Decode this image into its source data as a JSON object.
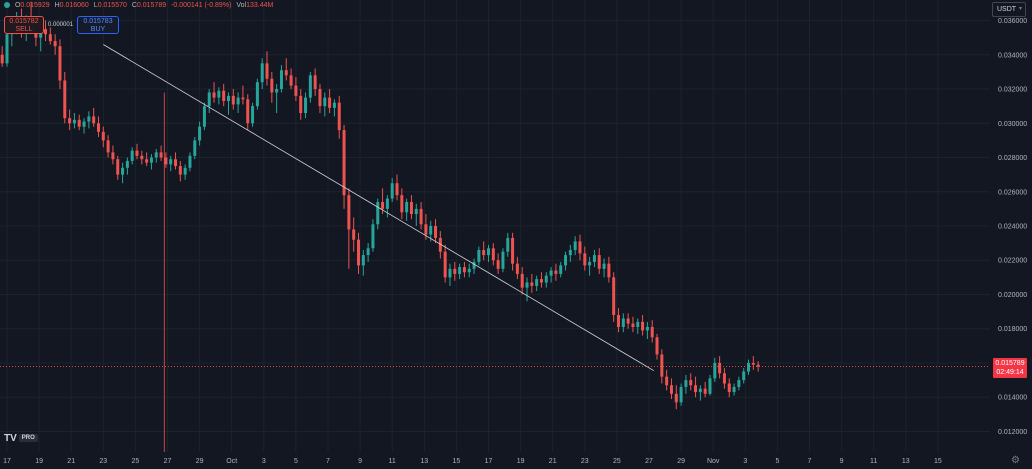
{
  "ohlc": {
    "open_label": "O",
    "open": "0.015929",
    "high_label": "H",
    "high": "0.016060",
    "low_label": "L",
    "low": "0.015570",
    "close_label": "C",
    "close": "0.015789",
    "change": "-0.000141 (-0.89%)",
    "volume_label": "Vol",
    "volume": "133.44M"
  },
  "trade": {
    "sell_price": "0.015782",
    "sell_label": "SELL",
    "spread": "0.000001",
    "buy_price": "0.015783",
    "buy_label": "BUY"
  },
  "currency_selector": {
    "value": "USDT"
  },
  "current_price": {
    "value": "0.015789",
    "countdown": "02:49:14"
  },
  "logo": {
    "text": "TV",
    "badge": "PRO"
  },
  "icons": {
    "settings": "gear-icon",
    "symbol_dot": "circle-icon"
  },
  "colors": {
    "background": "#131722",
    "up": "#26a69a",
    "down": "#ef5350",
    "grid": "#1e222d",
    "text": "#b2b5be"
  },
  "chart_data": {
    "type": "candlestick",
    "y_axis": {
      "ticks": [
        "0.036000",
        "0.034000",
        "0.032000",
        "0.030000",
        "0.028000",
        "0.026000",
        "0.024000",
        "0.022000",
        "0.020000",
        "0.018000",
        "0.016000",
        "0.014000",
        "0.012000"
      ],
      "range": [
        0.0108,
        0.0372
      ]
    },
    "x_axis": {
      "ticks": [
        "17",
        "19",
        "21",
        "23",
        "25",
        "27",
        "29",
        "Oct",
        "3",
        "5",
        "7",
        "9",
        "11",
        "13",
        "15",
        "17",
        "19",
        "21",
        "23",
        "25",
        "27",
        "29",
        "Nov",
        "3",
        "5",
        "7",
        "9",
        "11",
        "13",
        "15"
      ]
    },
    "trendline": {
      "from": {
        "day": 6,
        "price": 0.0346
      },
      "to": {
        "day": 40.3,
        "price": 0.01555
      }
    },
    "current_price_line": 0.015789,
    "crosshair_day": 9.8,
    "ohlc_days": [
      [
        -0.9,
        0.0335,
        0.0338,
        0.0331,
        0.0334
      ],
      [
        -0.6,
        0.0334,
        0.0342,
        0.0332,
        0.034
      ],
      [
        -0.3,
        0.034,
        0.0345,
        0.0333,
        0.0335
      ],
      [
        0.0,
        0.0335,
        0.0353,
        0.0333,
        0.0352
      ],
      [
        0.3,
        0.0352,
        0.036,
        0.0345,
        0.0358
      ],
      [
        0.6,
        0.0358,
        0.0365,
        0.0352,
        0.036
      ],
      [
        0.9,
        0.036,
        0.0367,
        0.035,
        0.0355
      ],
      [
        1.2,
        0.0355,
        0.0363,
        0.0348,
        0.0362
      ],
      [
        1.5,
        0.0362,
        0.0371,
        0.0355,
        0.0358
      ],
      [
        1.8,
        0.0358,
        0.0362,
        0.0345,
        0.035
      ],
      [
        2.1,
        0.035,
        0.0358,
        0.0342,
        0.0355
      ],
      [
        2.4,
        0.0355,
        0.036,
        0.0348,
        0.0352
      ],
      [
        2.7,
        0.0352,
        0.0356,
        0.0346,
        0.0348
      ],
      [
        3.0,
        0.0348,
        0.0352,
        0.034,
        0.0345
      ],
      [
        3.3,
        0.0345,
        0.0349,
        0.032,
        0.0325
      ],
      [
        3.6,
        0.0325,
        0.033,
        0.03,
        0.0303
      ],
      [
        3.9,
        0.0303,
        0.0308,
        0.0296,
        0.03
      ],
      [
        4.2,
        0.03,
        0.0306,
        0.0297,
        0.0302
      ],
      [
        4.5,
        0.0302,
        0.0305,
        0.0296,
        0.0298
      ],
      [
        4.8,
        0.0298,
        0.0303,
        0.0294,
        0.0301
      ],
      [
        5.1,
        0.0301,
        0.0307,
        0.0297,
        0.0304
      ],
      [
        5.4,
        0.0304,
        0.0309,
        0.0298,
        0.03
      ],
      [
        5.7,
        0.03,
        0.0304,
        0.0292,
        0.0295
      ],
      [
        6.0,
        0.0295,
        0.0298,
        0.0286,
        0.029
      ],
      [
        6.3,
        0.029,
        0.0293,
        0.028,
        0.0283
      ],
      [
        6.6,
        0.0283,
        0.0287,
        0.0276,
        0.0279
      ],
      [
        6.9,
        0.0279,
        0.0281,
        0.0267,
        0.027
      ],
      [
        7.2,
        0.027,
        0.0277,
        0.0265,
        0.0274
      ],
      [
        7.5,
        0.0274,
        0.028,
        0.027,
        0.0278
      ],
      [
        7.8,
        0.0278,
        0.0286,
        0.0276,
        0.0284
      ],
      [
        8.1,
        0.0284,
        0.0288,
        0.0279,
        0.0281
      ],
      [
        8.4,
        0.0281,
        0.0284,
        0.0276,
        0.0279
      ],
      [
        8.7,
        0.0279,
        0.0283,
        0.0275,
        0.0277
      ],
      [
        9.0,
        0.0277,
        0.0282,
        0.0273,
        0.028
      ],
      [
        9.3,
        0.028,
        0.0285,
        0.0277,
        0.0283
      ],
      [
        9.6,
        0.0283,
        0.0287,
        0.0278,
        0.028
      ],
      [
        9.9,
        0.028,
        0.0283,
        0.0274,
        0.0276
      ],
      [
        10.2,
        0.0276,
        0.0281,
        0.0272,
        0.0279
      ],
      [
        10.5,
        0.0279,
        0.0283,
        0.0273,
        0.0275
      ],
      [
        10.8,
        0.0275,
        0.0278,
        0.0266,
        0.027
      ],
      [
        11.1,
        0.027,
        0.0276,
        0.0267,
        0.0274
      ],
      [
        11.4,
        0.0274,
        0.0283,
        0.0272,
        0.0281
      ],
      [
        11.7,
        0.0281,
        0.0292,
        0.0279,
        0.029
      ],
      [
        12.0,
        0.029,
        0.0301,
        0.0287,
        0.0298
      ],
      [
        12.3,
        0.0298,
        0.0312,
        0.0296,
        0.031
      ],
      [
        12.6,
        0.031,
        0.032,
        0.0306,
        0.0318
      ],
      [
        12.9,
        0.0318,
        0.0324,
        0.0312,
        0.0315
      ],
      [
        13.2,
        0.0315,
        0.0321,
        0.0311,
        0.0319
      ],
      [
        13.5,
        0.0319,
        0.0323,
        0.031,
        0.0313
      ],
      [
        13.8,
        0.0313,
        0.0318,
        0.0305,
        0.0316
      ],
      [
        14.1,
        0.0316,
        0.032,
        0.0308,
        0.0311
      ],
      [
        14.4,
        0.0311,
        0.0318,
        0.0306,
        0.0315
      ],
      [
        14.7,
        0.0315,
        0.0322,
        0.0311,
        0.0314
      ],
      [
        15.0,
        0.0314,
        0.0317,
        0.0296,
        0.03
      ],
      [
        15.3,
        0.03,
        0.0312,
        0.0298,
        0.031
      ],
      [
        15.6,
        0.031,
        0.0326,
        0.0308,
        0.0324
      ],
      [
        15.9,
        0.0324,
        0.0338,
        0.032,
        0.0335
      ],
      [
        16.2,
        0.0335,
        0.0342,
        0.0322,
        0.0326
      ],
      [
        16.5,
        0.0326,
        0.033,
        0.0312,
        0.0318
      ],
      [
        16.8,
        0.0318,
        0.0323,
        0.0306,
        0.032
      ],
      [
        17.1,
        0.032,
        0.0334,
        0.0318,
        0.0331
      ],
      [
        17.4,
        0.0331,
        0.0338,
        0.0325,
        0.0328
      ],
      [
        17.7,
        0.0328,
        0.0332,
        0.032,
        0.0322
      ],
      [
        18.0,
        0.0322,
        0.0327,
        0.0313,
        0.0316
      ],
      [
        18.3,
        0.0316,
        0.032,
        0.0302,
        0.0306
      ],
      [
        18.6,
        0.0306,
        0.0318,
        0.0303,
        0.0315
      ],
      [
        18.9,
        0.0315,
        0.033,
        0.0312,
        0.0328
      ],
      [
        19.2,
        0.0328,
        0.0332,
        0.0316,
        0.032
      ],
      [
        19.5,
        0.032,
        0.0323,
        0.0306,
        0.031
      ],
      [
        19.8,
        0.031,
        0.0318,
        0.0304,
        0.0315
      ],
      [
        20.1,
        0.0315,
        0.032,
        0.0306,
        0.0309
      ],
      [
        20.4,
        0.0309,
        0.0314,
        0.0304,
        0.0312
      ],
      [
        20.7,
        0.0312,
        0.0316,
        0.0291,
        0.0296
      ],
      [
        21.0,
        0.0296,
        0.0299,
        0.025,
        0.0258
      ],
      [
        21.3,
        0.0258,
        0.0262,
        0.0215,
        0.0238
      ],
      [
        21.6,
        0.0238,
        0.0245,
        0.0225,
        0.0232
      ],
      [
        21.9,
        0.0232,
        0.0236,
        0.0212,
        0.0217
      ],
      [
        22.2,
        0.0217,
        0.0226,
        0.0211,
        0.0223
      ],
      [
        22.5,
        0.0223,
        0.023,
        0.0219,
        0.0227
      ],
      [
        22.8,
        0.0227,
        0.0244,
        0.0225,
        0.0241
      ],
      [
        23.1,
        0.0241,
        0.0256,
        0.0238,
        0.0254
      ],
      [
        23.4,
        0.0254,
        0.0262,
        0.0247,
        0.025
      ],
      [
        23.7,
        0.025,
        0.0258,
        0.0245,
        0.0256
      ],
      [
        24.0,
        0.0256,
        0.0268,
        0.0254,
        0.0265
      ],
      [
        24.3,
        0.0265,
        0.027,
        0.0255,
        0.0258
      ],
      [
        24.6,
        0.0258,
        0.0262,
        0.0244,
        0.0248
      ],
      [
        24.9,
        0.0248,
        0.0256,
        0.0243,
        0.0254
      ],
      [
        25.2,
        0.0254,
        0.0258,
        0.0244,
        0.0247
      ],
      [
        25.5,
        0.0247,
        0.0253,
        0.024,
        0.025
      ],
      [
        25.8,
        0.025,
        0.0254,
        0.0238,
        0.0241
      ],
      [
        26.1,
        0.0241,
        0.0247,
        0.0232,
        0.0235
      ],
      [
        26.4,
        0.0235,
        0.0243,
        0.0231,
        0.024
      ],
      [
        26.7,
        0.024,
        0.0244,
        0.023,
        0.0233
      ],
      [
        27.0,
        0.0233,
        0.0237,
        0.0221,
        0.0225
      ],
      [
        27.3,
        0.0225,
        0.0229,
        0.0207,
        0.021
      ],
      [
        27.6,
        0.021,
        0.0218,
        0.0205,
        0.0215
      ],
      [
        27.9,
        0.0215,
        0.0219,
        0.0208,
        0.0212
      ],
      [
        28.2,
        0.0212,
        0.0218,
        0.0209,
        0.0216
      ],
      [
        28.5,
        0.0216,
        0.0219,
        0.021,
        0.0213
      ],
      [
        28.8,
        0.0213,
        0.0218,
        0.021,
        0.0215
      ],
      [
        29.1,
        0.0215,
        0.0221,
        0.0212,
        0.0219
      ],
      [
        29.4,
        0.0219,
        0.0228,
        0.0217,
        0.0226
      ],
      [
        29.7,
        0.0226,
        0.0231,
        0.022,
        0.0223
      ],
      [
        30.0,
        0.0223,
        0.0229,
        0.0219,
        0.0227
      ],
      [
        30.3,
        0.0227,
        0.023,
        0.0217,
        0.022
      ],
      [
        30.6,
        0.022,
        0.0224,
        0.0212,
        0.0215
      ],
      [
        30.9,
        0.0215,
        0.0227,
        0.0213,
        0.0225
      ],
      [
        31.2,
        0.0225,
        0.0236,
        0.0222,
        0.0233
      ],
      [
        31.5,
        0.0233,
        0.0236,
        0.0214,
        0.0218
      ],
      [
        31.8,
        0.0218,
        0.0222,
        0.0209,
        0.0212
      ],
      [
        32.1,
        0.0212,
        0.0216,
        0.02,
        0.0204
      ],
      [
        32.4,
        0.0204,
        0.021,
        0.0196,
        0.0207
      ],
      [
        32.7,
        0.0207,
        0.0212,
        0.0201,
        0.0205
      ],
      [
        33.0,
        0.0205,
        0.0211,
        0.0202,
        0.0209
      ],
      [
        33.3,
        0.0209,
        0.0213,
        0.0204,
        0.0207
      ],
      [
        33.6,
        0.0207,
        0.0213,
        0.0204,
        0.0211
      ],
      [
        33.9,
        0.0211,
        0.0216,
        0.0207,
        0.0214
      ],
      [
        34.2,
        0.0214,
        0.0218,
        0.0208,
        0.0212
      ],
      [
        34.5,
        0.0212,
        0.0219,
        0.021,
        0.0217
      ],
      [
        34.8,
        0.0217,
        0.0225,
        0.0214,
        0.0223
      ],
      [
        35.1,
        0.0223,
        0.0229,
        0.0219,
        0.0226
      ],
      [
        35.4,
        0.0226,
        0.0234,
        0.0223,
        0.0231
      ],
      [
        35.7,
        0.0231,
        0.0235,
        0.022,
        0.0224
      ],
      [
        36.0,
        0.0224,
        0.0228,
        0.0214,
        0.0217
      ],
      [
        36.3,
        0.0217,
        0.0222,
        0.0211,
        0.0219
      ],
      [
        36.6,
        0.0219,
        0.0226,
        0.0216,
        0.0223
      ],
      [
        36.9,
        0.0223,
        0.0227,
        0.0212,
        0.0215
      ],
      [
        37.2,
        0.0215,
        0.0221,
        0.021,
        0.0218
      ],
      [
        37.5,
        0.0218,
        0.0222,
        0.0207,
        0.021
      ],
      [
        37.8,
        0.021,
        0.0213,
        0.0184,
        0.0188
      ],
      [
        38.1,
        0.0188,
        0.0192,
        0.0178,
        0.0181
      ],
      [
        38.4,
        0.0181,
        0.0189,
        0.0178,
        0.0186
      ],
      [
        38.7,
        0.0186,
        0.0189,
        0.018,
        0.0183
      ],
      [
        39.0,
        0.0183,
        0.0187,
        0.0178,
        0.0181
      ],
      [
        39.3,
        0.0181,
        0.0186,
        0.0177,
        0.0184
      ],
      [
        39.6,
        0.0184,
        0.0188,
        0.0176,
        0.0179
      ],
      [
        39.9,
        0.0179,
        0.0184,
        0.0174,
        0.0181
      ],
      [
        40.2,
        0.0181,
        0.0185,
        0.0172,
        0.0175
      ],
      [
        40.5,
        0.0175,
        0.0177,
        0.0162,
        0.0165
      ],
      [
        40.8,
        0.0165,
        0.0168,
        0.0148,
        0.0152
      ],
      [
        41.1,
        0.0152,
        0.0156,
        0.0144,
        0.0147
      ],
      [
        41.4,
        0.0147,
        0.0151,
        0.0139,
        0.0142
      ],
      [
        41.7,
        0.0142,
        0.0147,
        0.0133,
        0.0137
      ],
      [
        42.0,
        0.0137,
        0.0148,
        0.0135,
        0.0146
      ],
      [
        42.3,
        0.0146,
        0.0153,
        0.0142,
        0.015
      ],
      [
        42.6,
        0.015,
        0.0154,
        0.0144,
        0.0147
      ],
      [
        42.9,
        0.0147,
        0.0152,
        0.014,
        0.0143
      ],
      [
        43.2,
        0.0143,
        0.0147,
        0.0138,
        0.0145
      ],
      [
        43.5,
        0.0145,
        0.0149,
        0.014,
        0.0142
      ],
      [
        43.8,
        0.0142,
        0.0153,
        0.0141,
        0.0151
      ],
      [
        44.1,
        0.0151,
        0.0163,
        0.0149,
        0.016
      ],
      [
        44.4,
        0.016,
        0.0164,
        0.0151,
        0.0154
      ],
      [
        44.7,
        0.0154,
        0.0157,
        0.0145,
        0.0148
      ],
      [
        45.0,
        0.0148,
        0.0151,
        0.014,
        0.0143
      ],
      [
        45.3,
        0.0143,
        0.0148,
        0.0141,
        0.0146
      ],
      [
        45.6,
        0.0146,
        0.0152,
        0.0144,
        0.015
      ],
      [
        45.9,
        0.015,
        0.0157,
        0.0148,
        0.0155
      ],
      [
        46.2,
        0.0155,
        0.0162,
        0.0153,
        0.016
      ],
      [
        46.5,
        0.016,
        0.0164,
        0.0156,
        0.0159
      ],
      [
        46.8,
        0.0159,
        0.0161,
        0.0155,
        0.01579
      ]
    ]
  }
}
